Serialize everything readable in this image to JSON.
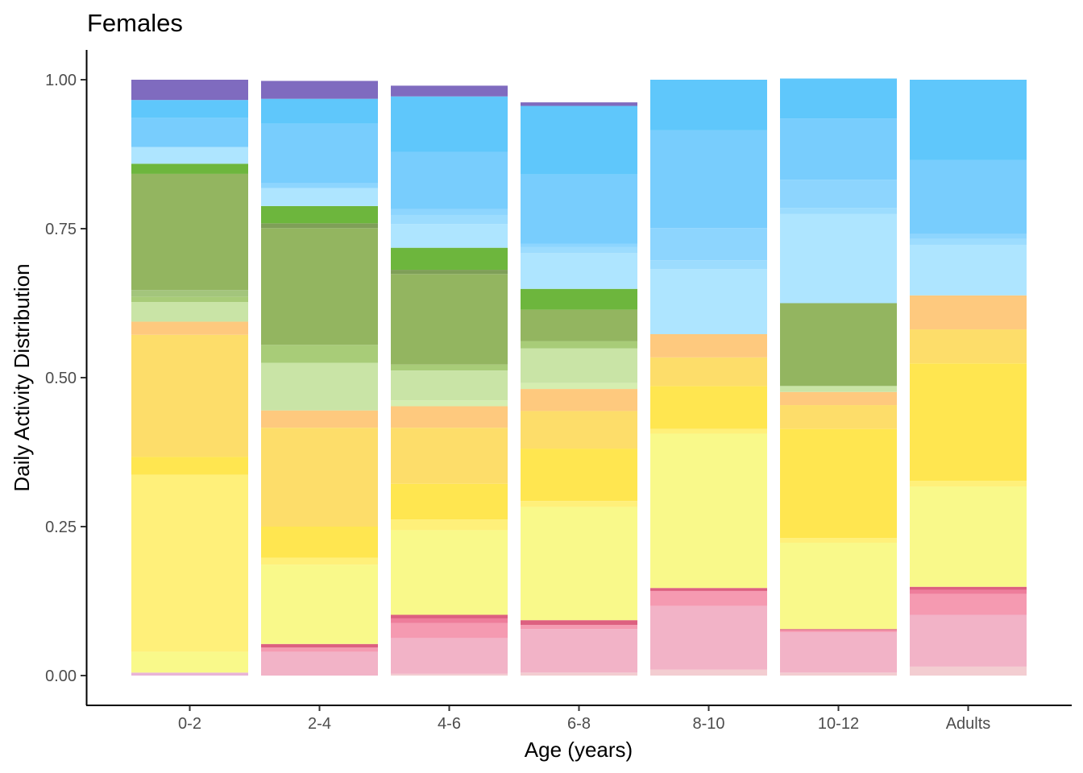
{
  "chart_data": {
    "type": "bar",
    "stacked": true,
    "title": "Females",
    "xlabel": "Age (years)",
    "ylabel": "Daily Activity Distribution",
    "categories": [
      "0-2",
      "2-4",
      "4-6",
      "6-8",
      "8-10",
      "10-12",
      "Adults"
    ],
    "ylim": [
      -0.05,
      1.05
    ],
    "yticks": [
      0.0,
      0.25,
      0.5,
      0.75,
      1.0
    ],
    "ytick_labels": [
      "0.00",
      "0.25",
      "0.50",
      "0.75",
      "1.00"
    ],
    "grid": false,
    "legend": "none",
    "bars": [
      {
        "category": "0-2",
        "segments": [
          {
            "value": 0.005,
            "color": "#e8b4d8"
          },
          {
            "value": 0.035,
            "color": "#f9f98a"
          },
          {
            "value": 0.297,
            "color": "#fff07a"
          },
          {
            "value": 0.03,
            "color": "#ffe650"
          },
          {
            "value": 0.205,
            "color": "#fddd6a"
          },
          {
            "value": 0.022,
            "color": "#fec97e"
          },
          {
            "value": 0.033,
            "color": "#c9e4a6"
          },
          {
            "value": 0.009,
            "color": "#a8cc78"
          },
          {
            "value": 0.011,
            "color": "#a3c57c"
          },
          {
            "value": 0.195,
            "color": "#93b560"
          },
          {
            "value": 0.017,
            "color": "#6db63d"
          },
          {
            "value": 0.028,
            "color": "#aee5ff"
          },
          {
            "value": 0.049,
            "color": "#78cdfd"
          },
          {
            "value": 0.03,
            "color": "#5fc7fb"
          },
          {
            "value": 0.034,
            "color": "#7f6bbf"
          }
        ]
      },
      {
        "category": "2-4",
        "segments": [
          {
            "value": 0.04,
            "color": "#f2b3c7"
          },
          {
            "value": 0.007,
            "color": "#f59ab1"
          },
          {
            "value": 0.006,
            "color": "#dd6080"
          },
          {
            "value": 0.133,
            "color": "#f9f98a"
          },
          {
            "value": 0.012,
            "color": "#fff07a"
          },
          {
            "value": 0.052,
            "color": "#ffe650"
          },
          {
            "value": 0.166,
            "color": "#fddd6a"
          },
          {
            "value": 0.029,
            "color": "#fec97e"
          },
          {
            "value": 0.08,
            "color": "#c9e4a6"
          },
          {
            "value": 0.03,
            "color": "#a8cc78"
          },
          {
            "value": 0.196,
            "color": "#93b560"
          },
          {
            "value": 0.008,
            "color": "#7f9f58"
          },
          {
            "value": 0.029,
            "color": "#6db63d"
          },
          {
            "value": 0.03,
            "color": "#aee5ff"
          },
          {
            "value": 0.008,
            "color": "#8dd5fe"
          },
          {
            "value": 0.1,
            "color": "#78cdfd"
          },
          {
            "value": 0.042,
            "color": "#5fc7fb"
          },
          {
            "value": 0.03,
            "color": "#7f6bbf"
          }
        ]
      },
      {
        "category": "4-6",
        "segments": [
          {
            "value": 0.003,
            "color": "#f3cdd1"
          },
          {
            "value": 0.06,
            "color": "#f2b3c7"
          },
          {
            "value": 0.025,
            "color": "#f59ab1"
          },
          {
            "value": 0.008,
            "color": "#ee7d9b"
          },
          {
            "value": 0.006,
            "color": "#dd6080"
          },
          {
            "value": 0.142,
            "color": "#f9f98a"
          },
          {
            "value": 0.018,
            "color": "#fff07a"
          },
          {
            "value": 0.06,
            "color": "#ffe650"
          },
          {
            "value": 0.094,
            "color": "#fddd6a"
          },
          {
            "value": 0.036,
            "color": "#fec97e"
          },
          {
            "value": 0.01,
            "color": "#d5eeb0"
          },
          {
            "value": 0.05,
            "color": "#c9e4a6"
          },
          {
            "value": 0.01,
            "color": "#a8cc78"
          },
          {
            "value": 0.152,
            "color": "#93b560"
          },
          {
            "value": 0.007,
            "color": "#7f9f58"
          },
          {
            "value": 0.037,
            "color": "#6db63d"
          },
          {
            "value": 0.04,
            "color": "#aee5ff"
          },
          {
            "value": 0.015,
            "color": "#9cdcfe"
          },
          {
            "value": 0.01,
            "color": "#8dd5fe"
          },
          {
            "value": 0.096,
            "color": "#78cdfd"
          },
          {
            "value": 0.093,
            "color": "#5fc7fb"
          },
          {
            "value": 0.018,
            "color": "#7f6bbf"
          }
        ]
      },
      {
        "category": "6-8",
        "segments": [
          {
            "value": 0.005,
            "color": "#f3cdd1"
          },
          {
            "value": 0.073,
            "color": "#f2b3c7"
          },
          {
            "value": 0.007,
            "color": "#f59ab1"
          },
          {
            "value": 0.008,
            "color": "#dd6080"
          },
          {
            "value": 0.19,
            "color": "#f9f98a"
          },
          {
            "value": 0.01,
            "color": "#fff07a"
          },
          {
            "value": 0.088,
            "color": "#ffe650"
          },
          {
            "value": 0.063,
            "color": "#fddd6a"
          },
          {
            "value": 0.037,
            "color": "#fec97e"
          },
          {
            "value": 0.01,
            "color": "#d5eeb0"
          },
          {
            "value": 0.058,
            "color": "#c9e4a6"
          },
          {
            "value": 0.012,
            "color": "#a8cc78"
          },
          {
            "value": 0.053,
            "color": "#93b560"
          },
          {
            "value": 0.035,
            "color": "#6db63d"
          },
          {
            "value": 0.06,
            "color": "#aee5ff"
          },
          {
            "value": 0.01,
            "color": "#9cdcfe"
          },
          {
            "value": 0.006,
            "color": "#8dd5fe"
          },
          {
            "value": 0.116,
            "color": "#78cdfd"
          },
          {
            "value": 0.115,
            "color": "#5fc7fb"
          },
          {
            "value": 0.006,
            "color": "#7f6bbf"
          }
        ]
      },
      {
        "category": "8-10",
        "segments": [
          {
            "value": 0.01,
            "color": "#f3cdd1"
          },
          {
            "value": 0.107,
            "color": "#f2b3c7"
          },
          {
            "value": 0.025,
            "color": "#f59ab1"
          },
          {
            "value": 0.005,
            "color": "#dd6080"
          },
          {
            "value": 0.259,
            "color": "#f9f98a"
          },
          {
            "value": 0.008,
            "color": "#fff07a"
          },
          {
            "value": 0.072,
            "color": "#ffe650"
          },
          {
            "value": 0.048,
            "color": "#fddd6a"
          },
          {
            "value": 0.039,
            "color": "#fec97e"
          },
          {
            "value": 0.109,
            "color": "#aee5ff"
          },
          {
            "value": 0.015,
            "color": "#9cdcfe"
          },
          {
            "value": 0.054,
            "color": "#8dd5fe"
          },
          {
            "value": 0.164,
            "color": "#78cdfd"
          },
          {
            "value": 0.085,
            "color": "#5fc7fb"
          }
        ]
      },
      {
        "category": "10-12",
        "segments": [
          {
            "value": 0.005,
            "color": "#f3cdd1"
          },
          {
            "value": 0.068,
            "color": "#f2b3c7"
          },
          {
            "value": 0.003,
            "color": "#f59ab1"
          },
          {
            "value": 0.002,
            "color": "#dd6080"
          },
          {
            "value": 0.145,
            "color": "#f9f98a"
          },
          {
            "value": 0.008,
            "color": "#fff07a"
          },
          {
            "value": 0.183,
            "color": "#ffe650"
          },
          {
            "value": 0.04,
            "color": "#fddd6a"
          },
          {
            "value": 0.022,
            "color": "#fec97e"
          },
          {
            "value": 0.01,
            "color": "#c9e4a6"
          },
          {
            "value": 0.139,
            "color": "#93b560"
          },
          {
            "value": 0.15,
            "color": "#aee5ff"
          },
          {
            "value": 0.01,
            "color": "#9cdcfe"
          },
          {
            "value": 0.047,
            "color": "#8dd5fe"
          },
          {
            "value": 0.103,
            "color": "#78cdfd"
          },
          {
            "value": 0.067,
            "color": "#5fc7fb"
          }
        ]
      },
      {
        "category": "Adults",
        "segments": [
          {
            "value": 0.015,
            "color": "#f3cdd1"
          },
          {
            "value": 0.087,
            "color": "#f2b3c7"
          },
          {
            "value": 0.035,
            "color": "#f59ab1"
          },
          {
            "value": 0.007,
            "color": "#ee7d9b"
          },
          {
            "value": 0.005,
            "color": "#dd6080"
          },
          {
            "value": 0.168,
            "color": "#f9f98a"
          },
          {
            "value": 0.01,
            "color": "#fff07a"
          },
          {
            "value": 0.197,
            "color": "#ffe650"
          },
          {
            "value": 0.057,
            "color": "#fddd6a"
          },
          {
            "value": 0.057,
            "color": "#fec97e"
          },
          {
            "value": 0.085,
            "color": "#aee5ff"
          },
          {
            "value": 0.01,
            "color": "#9cdcfe"
          },
          {
            "value": 0.008,
            "color": "#8dd5fe"
          },
          {
            "value": 0.124,
            "color": "#78cdfd"
          },
          {
            "value": 0.135,
            "color": "#5fc7fb"
          }
        ]
      }
    ]
  }
}
